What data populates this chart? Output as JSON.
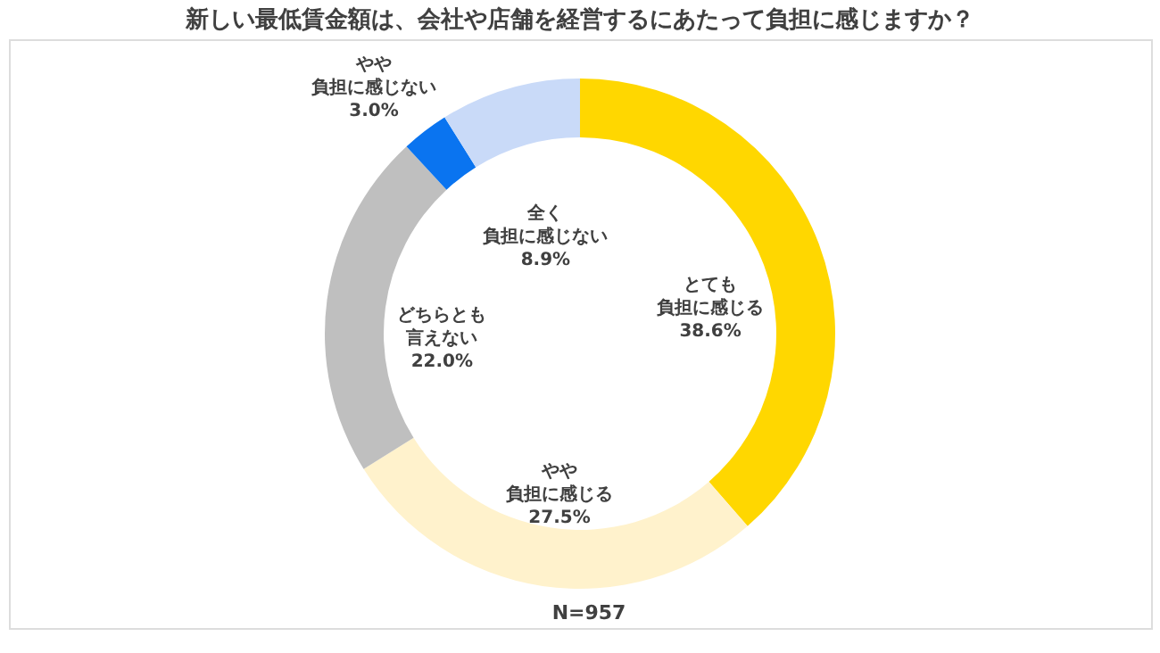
{
  "chart_data": {
    "type": "donut",
    "title": "新しい最低賃金額は、会社や店舗を経営するにあたって負担に感じますか？",
    "categories": [
      "とても負担に感じる",
      "やや負担に感じる",
      "どちらとも言えない",
      "やや負担に感じない",
      "全く負担に感じない"
    ],
    "values": [
      38.6,
      27.5,
      22.0,
      3.0,
      8.9
    ],
    "value_labels": [
      "38.6%",
      "27.5%",
      "22.0%",
      "3.0%",
      "8.9%"
    ],
    "colors": [
      "#ffd700",
      "#fff2cc",
      "#bfbfbf",
      "#0a74f0",
      "#c9daf8"
    ],
    "legend": false,
    "annotations": [
      "N=957"
    ]
  }
}
